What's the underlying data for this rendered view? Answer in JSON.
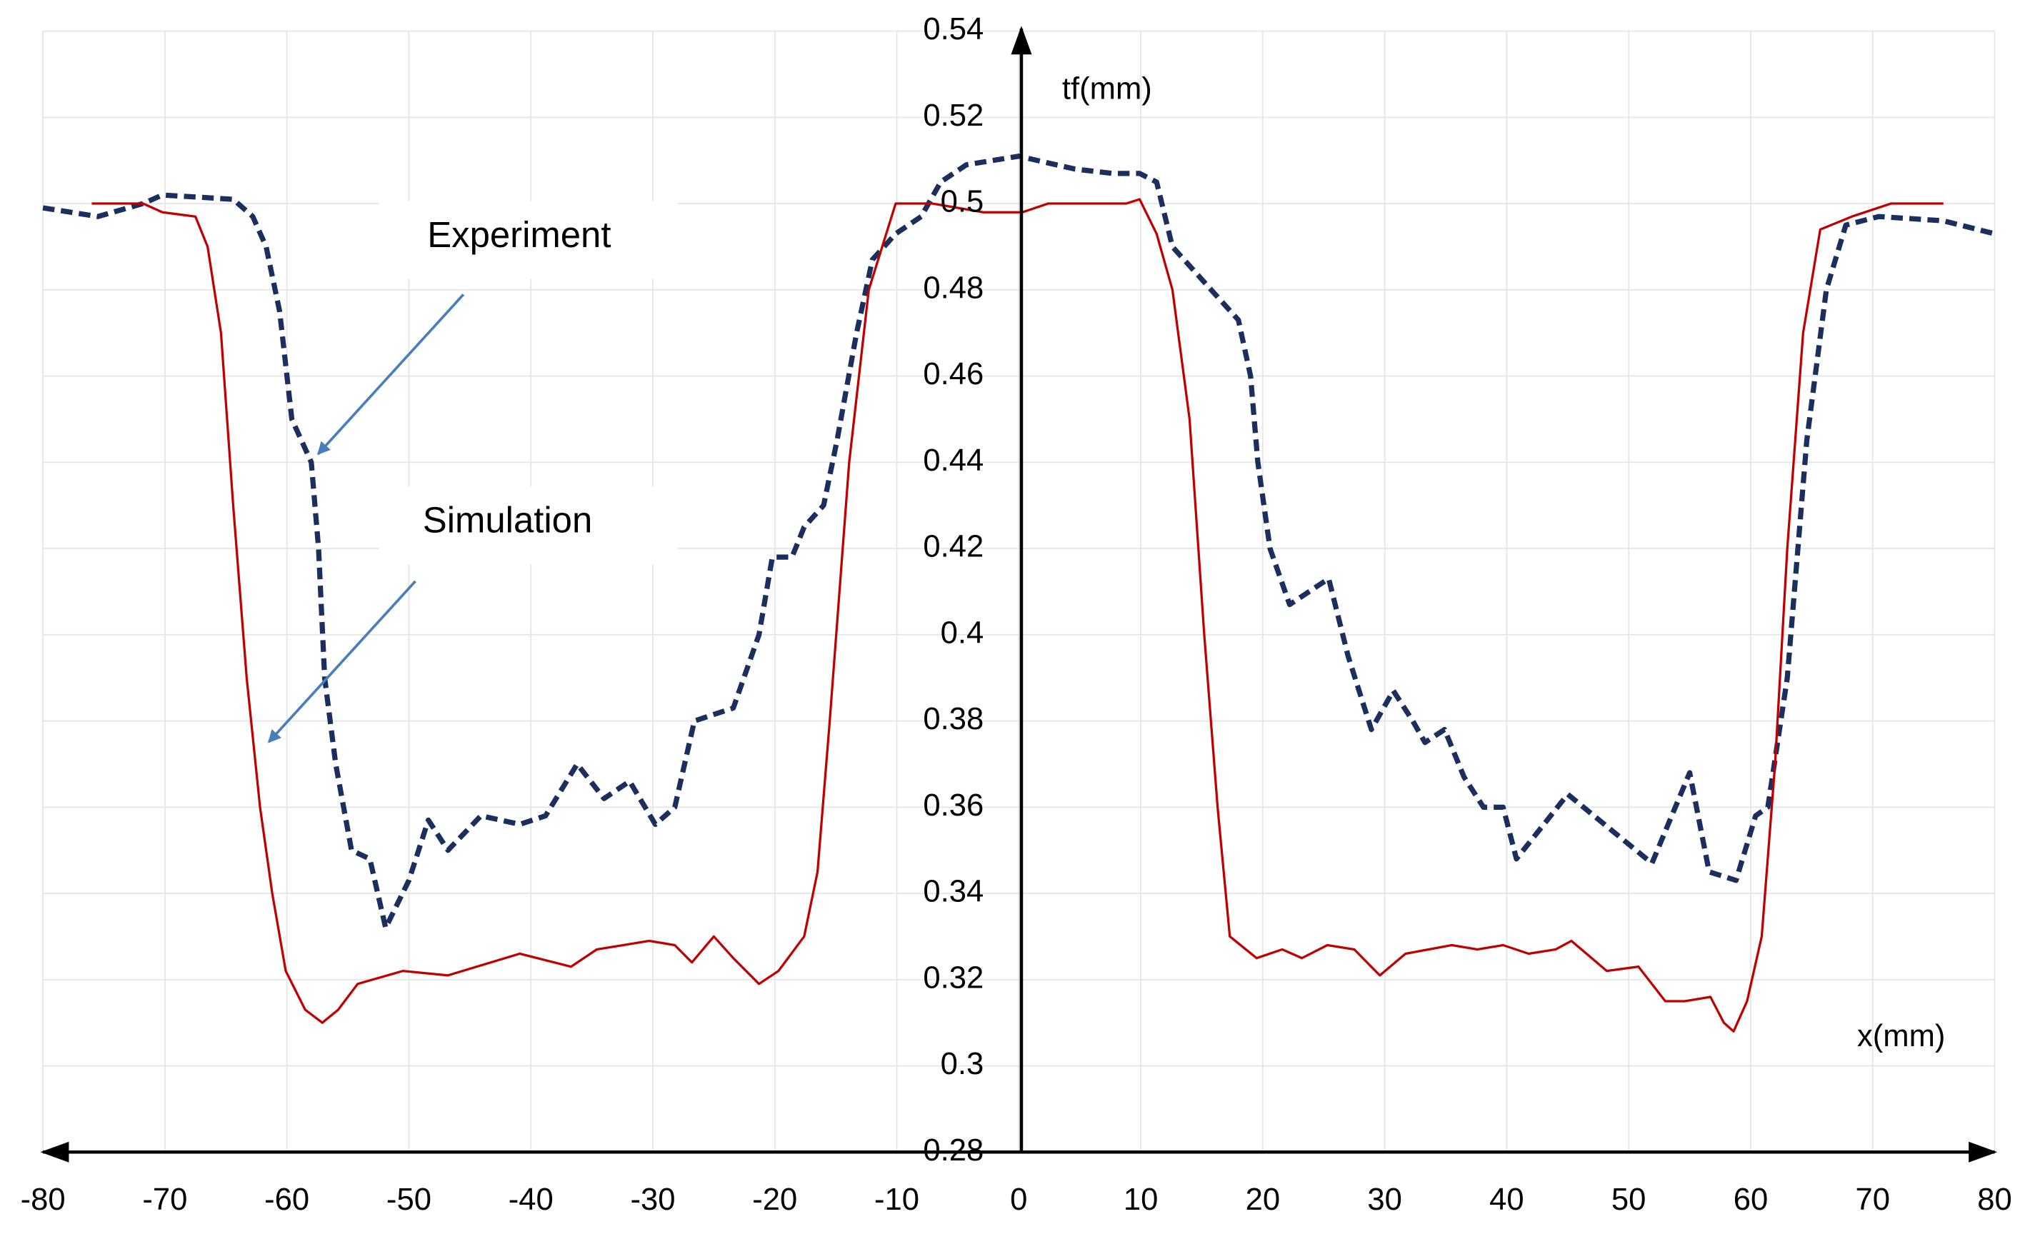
{
  "chart_data": {
    "type": "line",
    "x_label": "x(mm)",
    "y_label": "tf(mm)",
    "xlim": [
      -80,
      80
    ],
    "xticks": [
      -80,
      -70,
      -60,
      -50,
      -40,
      -30,
      -20,
      -10,
      0,
      10,
      20,
      30,
      40,
      50,
      60,
      70,
      80
    ],
    "ylim": [
      0.28,
      0.54
    ],
    "yticks": [
      0.28,
      0.3,
      0.32,
      0.34,
      0.36,
      0.38,
      0.4,
      0.42,
      0.44,
      0.46,
      0.48,
      0.5,
      0.52,
      0.54
    ],
    "grid": true,
    "series": [
      {
        "name": "Experiment",
        "color": "#1a2f5e",
        "dashed": true,
        "x": [
          -80,
          -75.5,
          -71.8,
          -70.2,
          -64.4,
          -62.8,
          -61.7,
          -60.6,
          -59.6,
          -58,
          -57.4,
          -56.9,
          -56,
          -54.7,
          -53.2,
          -51.9,
          -50,
          -48.4,
          -46.8,
          -44.1,
          -40.9,
          -38.8,
          -36.2,
          -34,
          -31.9,
          -29.8,
          -28.2,
          -26.6,
          -23.4,
          -21.3,
          -20.2,
          -18.6,
          -17.6,
          -16,
          -14.9,
          -13.3,
          -12,
          -10.1,
          -8,
          -6.4,
          -4.3,
          0,
          4.6,
          7.7,
          9.9,
          11.3,
          12.6,
          16.4,
          18,
          19,
          19.6,
          20.6,
          22.2,
          23.8,
          25.4,
          27,
          28.9,
          30.7,
          32.3,
          33.3,
          34.9,
          36.5,
          38.1,
          39.7,
          40.8,
          45,
          51.9,
          55,
          56.6,
          58.8,
          60.4,
          61.4,
          63,
          64.6,
          66.2,
          67.8,
          70.5,
          75.8,
          80
        ],
        "values": [
          0.499,
          0.497,
          0.5,
          0.502,
          0.501,
          0.497,
          0.49,
          0.475,
          0.45,
          0.44,
          0.42,
          0.39,
          0.37,
          0.35,
          0.348,
          0.332,
          0.343,
          0.357,
          0.35,
          0.358,
          0.356,
          0.358,
          0.37,
          0.362,
          0.366,
          0.356,
          0.36,
          0.38,
          0.383,
          0.4,
          0.418,
          0.418,
          0.425,
          0.43,
          0.445,
          0.47,
          0.487,
          0.493,
          0.497,
          0.505,
          0.509,
          0.511,
          0.508,
          0.507,
          0.507,
          0.505,
          0.49,
          0.478,
          0.473,
          0.46,
          0.44,
          0.42,
          0.407,
          0.41,
          0.413,
          0.395,
          0.378,
          0.387,
          0.38,
          0.375,
          0.378,
          0.367,
          0.36,
          0.36,
          0.348,
          0.363,
          0.347,
          0.368,
          0.345,
          0.343,
          0.358,
          0.36,
          0.39,
          0.445,
          0.48,
          0.495,
          0.497,
          0.496,
          0.493
        ]
      },
      {
        "name": "Simulation",
        "color": "#c00000",
        "dashed": false,
        "x": [
          -76,
          -71.8,
          -70.2,
          -67.5,
          -66.5,
          -65.4,
          -64.4,
          -63.3,
          -62.2,
          -61.2,
          -60.1,
          -58.5,
          -57.1,
          -55.8,
          -54.2,
          -50.5,
          -46.8,
          -40.9,
          -36.7,
          -34.6,
          -30.3,
          -28.2,
          -26.8,
          -25,
          -23.4,
          -21.3,
          -19.7,
          -17.6,
          -16.5,
          -15.5,
          -13.9,
          -12.3,
          -10.1,
          -7.1,
          -2.9,
          0.3,
          2.4,
          8.8,
          9.9,
          11.3,
          12.6,
          14,
          15.2,
          16.3,
          17.3,
          19.5,
          21.6,
          23.2,
          25.3,
          27.5,
          29.6,
          31.7,
          35.5,
          37.6,
          39.7,
          41.8,
          44,
          45.3,
          48.2,
          50.8,
          53,
          54.6,
          56.7,
          57.8,
          58.6,
          59.7,
          60.9,
          62,
          63,
          64.3,
          65.7,
          68.3,
          71.5,
          75.8
        ],
        "values": [
          0.5,
          0.5,
          0.498,
          0.497,
          0.49,
          0.47,
          0.43,
          0.39,
          0.36,
          0.34,
          0.322,
          0.313,
          0.31,
          0.313,
          0.319,
          0.322,
          0.321,
          0.326,
          0.323,
          0.327,
          0.329,
          0.328,
          0.324,
          0.33,
          0.325,
          0.319,
          0.322,
          0.33,
          0.345,
          0.38,
          0.44,
          0.48,
          0.5,
          0.5,
          0.498,
          0.498,
          0.5,
          0.5,
          0.501,
          0.493,
          0.48,
          0.45,
          0.4,
          0.36,
          0.33,
          0.325,
          0.327,
          0.325,
          0.328,
          0.327,
          0.321,
          0.326,
          0.328,
          0.327,
          0.328,
          0.326,
          0.327,
          0.329,
          0.322,
          0.323,
          0.315,
          0.315,
          0.316,
          0.31,
          0.308,
          0.315,
          0.33,
          0.37,
          0.42,
          0.47,
          0.494,
          0.497,
          0.5,
          0.5
        ]
      }
    ]
  }
}
